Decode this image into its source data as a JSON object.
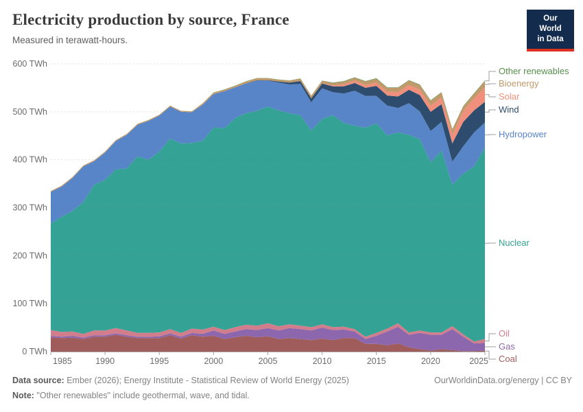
{
  "header": {
    "title": "Electricity production by source, France",
    "subtitle": "Measured in terawatt-hours.",
    "logo_line1": "Our World",
    "logo_line2": "in Data"
  },
  "footer": {
    "source_label": "Data source:",
    "source_text": " Ember (2026); Energy Institute - Statistical Review of World Energy (2025)",
    "note_label": "Note:",
    "note_text": " \"Other renewables\" include geothermal, wave, and tidal.",
    "credit": "OurWorldinData.org/energy | CC BY"
  },
  "colors": {
    "brand_navy": "#132c4e",
    "brand_red": "#dc3224",
    "grid": "#6e6e6e",
    "axis": "#a3a3a3",
    "tick_text": "#6b6b6b",
    "connector": "#9e9e9e"
  },
  "chart_data": {
    "type": "area",
    "stacked": true,
    "title": "Electricity production by source, France",
    "y_unit": "TWh",
    "ylim": [
      0,
      600
    ],
    "yticks": [
      0,
      100,
      200,
      300,
      400,
      500,
      600
    ],
    "xticks": [
      1985,
      1990,
      1995,
      2000,
      2005,
      2010,
      2015,
      2020,
      2025
    ],
    "grid": true,
    "legend_position": "right",
    "years": [
      1985,
      1986,
      1987,
      1988,
      1989,
      1990,
      1991,
      1992,
      1993,
      1994,
      1995,
      1996,
      1997,
      1998,
      1999,
      2000,
      2001,
      2002,
      2003,
      2004,
      2005,
      2006,
      2007,
      2008,
      2009,
      2010,
      2011,
      2012,
      2013,
      2014,
      2015,
      2016,
      2017,
      2018,
      2019,
      2020,
      2021,
      2022,
      2023,
      2024,
      2025
    ],
    "series": [
      {
        "name": "Coal",
        "color": "#a05c5a",
        "legend_y": 523,
        "values": [
          30,
          28,
          29,
          26,
          31,
          31,
          35,
          31,
          28,
          28,
          28,
          34,
          27,
          34,
          31,
          33,
          26,
          30,
          33,
          30,
          32,
          26,
          28,
          26,
          24,
          27,
          24,
          28,
          28,
          16,
          16,
          13,
          17,
          9,
          5,
          2,
          5,
          3,
          1,
          1,
          2
        ]
      },
      {
        "name": "Gas",
        "color": "#8c67ad",
        "legend_y": 505,
        "values": [
          3,
          3,
          4,
          3,
          3,
          3,
          3,
          3,
          3,
          3,
          4,
          4,
          4,
          5,
          6,
          11,
          11,
          12,
          14,
          15,
          17,
          18,
          21,
          21,
          20,
          23,
          21,
          18,
          14,
          10,
          17,
          29,
          35,
          26,
          34,
          33,
          30,
          44,
          30,
          16,
          16
        ]
      },
      {
        "name": "Oil",
        "color": "#d17d8c",
        "legend_y": 486,
        "values": [
          12,
          10,
          9,
          8,
          10,
          10,
          11,
          10,
          8,
          8,
          8,
          9,
          8,
          9,
          9,
          8,
          8,
          9,
          9,
          9,
          10,
          9,
          8,
          7,
          7,
          7,
          6,
          6,
          5,
          5,
          6,
          6,
          7,
          5,
          5,
          5,
          5,
          6,
          5,
          4,
          8
        ]
      },
      {
        "name": "Nuclear",
        "color": "#34a294",
        "legend_y": 354,
        "values": [
          222,
          240,
          251,
          275,
          304,
          314,
          331,
          338,
          368,
          361,
          377,
          397,
          395,
          387,
          394,
          415,
          421,
          436,
          441,
          448,
          452,
          450,
          440,
          439,
          410,
          428,
          442,
          425,
          424,
          436,
          437,
          403,
          398,
          412,
          399,
          355,
          379,
          295,
          335,
          365,
          400
        ]
      },
      {
        "name": "Hydropower",
        "color": "#5884c8",
        "legend_y": 196,
        "values": [
          66,
          63,
          69,
          74,
          49,
          57,
          59,
          70,
          66,
          81,
          75,
          67,
          66,
          64,
          75,
          70,
          77,
          64,
          62,
          63,
          54,
          58,
          60,
          65,
          59,
          64,
          48,
          61,
          73,
          66,
          57,
          62,
          51,
          66,
          58,
          65,
          60,
          48,
          57,
          71,
          52
        ]
      },
      {
        "name": "Wind",
        "color": "#2e4d6e",
        "legend_y": 160,
        "values": [
          0,
          0,
          0,
          0,
          0,
          0,
          0,
          0,
          0,
          0,
          0,
          0,
          0,
          0,
          0,
          0,
          0.1,
          0.2,
          0.4,
          1,
          1,
          2,
          4,
          6,
          8,
          10,
          12,
          15,
          16,
          17,
          21,
          21,
          24,
          28,
          34,
          40,
          37,
          38,
          51,
          46,
          43
        ]
      },
      {
        "name": "Solar",
        "color": "#f08f7b",
        "legend_y": 141,
        "values": [
          0,
          0,
          0,
          0,
          0,
          0,
          0,
          0,
          0,
          0,
          0,
          0,
          0,
          0,
          0,
          0,
          0,
          0,
          0,
          0,
          0,
          0,
          0,
          0,
          0.2,
          0.6,
          2,
          4,
          5,
          6,
          7,
          8,
          9,
          10,
          11,
          13,
          14,
          19,
          22,
          25,
          30
        ]
      },
      {
        "name": "Bioenergy",
        "color": "#c09a6a",
        "legend_y": 122,
        "values": [
          2,
          2,
          2,
          2,
          2,
          2,
          2,
          2,
          2,
          2,
          2,
          2,
          2,
          2,
          3,
          3,
          3,
          3,
          4,
          4,
          4,
          4,
          4,
          5,
          5,
          5,
          5,
          6,
          6,
          7,
          8,
          8,
          9,
          9,
          10,
          10,
          10,
          10,
          10,
          10,
          13
        ]
      },
      {
        "name": "Other renewables",
        "color": "#568f4b",
        "legend_y": 104,
        "values": [
          0,
          0,
          0,
          0,
          0,
          0,
          0,
          0,
          0,
          0,
          0,
          0,
          0,
          0,
          0,
          0.5,
          0.5,
          0.5,
          0.5,
          0.5,
          0.5,
          0.5,
          0.5,
          0.5,
          0.5,
          0.5,
          1,
          1,
          1,
          1,
          1,
          1,
          1,
          1,
          1,
          1,
          1,
          1,
          1,
          1,
          1
        ]
      }
    ]
  }
}
